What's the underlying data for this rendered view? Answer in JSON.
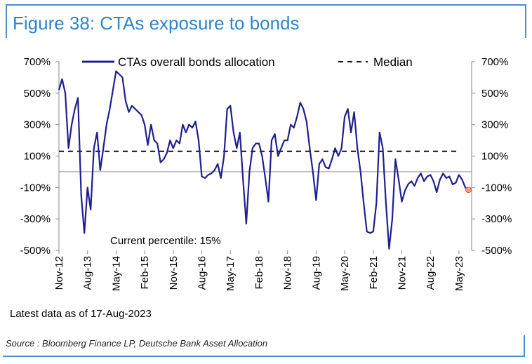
{
  "title": "Figure 38: CTAs exposure to bonds",
  "note": "Latest data as of 17-Aug-2023",
  "source": "Source : Bloomberg Finance LP, Deutsche Bank Asset Allocation",
  "colors": {
    "series": "#1f1f8f",
    "accent": "#2f86c9",
    "last_point": "#f4a07a"
  },
  "chart_data": {
    "type": "line",
    "title": "Figure 38: CTAs exposure to bonds",
    "ylim": [
      -500,
      700
    ],
    "yticks": [
      "700%",
      "500%",
      "300%",
      "100%",
      "-100%",
      "-300%",
      "-500%"
    ],
    "ytick_values": [
      700,
      500,
      300,
      100,
      -100,
      -300,
      -500
    ],
    "x_range": [
      "2012-11",
      "2023-09"
    ],
    "xticks": [
      "Nov-12",
      "Aug-13",
      "May-14",
      "Feb-15",
      "Nov-15",
      "Aug-16",
      "May-17",
      "Feb-18",
      "Nov-18",
      "Aug-19",
      "May-20",
      "Feb-21",
      "Nov-21",
      "Aug-22",
      "May-23"
    ],
    "xtick_dates": [
      "2012-11",
      "2013-08",
      "2014-05",
      "2015-02",
      "2015-11",
      "2016-08",
      "2017-05",
      "2018-02",
      "2018-11",
      "2019-08",
      "2020-05",
      "2021-02",
      "2021-11",
      "2022-08",
      "2023-05"
    ],
    "legend": [
      "CTAs overall bonds allocation",
      "Median"
    ],
    "annotation": "Current percentile: 15%",
    "median": 130,
    "series": [
      {
        "name": "CTAs overall bonds allocation",
        "points": [
          [
            "2012-11",
            520
          ],
          [
            "2012-12",
            590
          ],
          [
            "2013-01",
            500
          ],
          [
            "2013-02",
            150
          ],
          [
            "2013-03",
            300
          ],
          [
            "2013-04",
            400
          ],
          [
            "2013-05",
            470
          ],
          [
            "2013-06",
            -150
          ],
          [
            "2013-07",
            -390
          ],
          [
            "2013-08",
            -100
          ],
          [
            "2013-09",
            -240
          ],
          [
            "2013-10",
            150
          ],
          [
            "2013-11",
            250
          ],
          [
            "2013-12",
            10
          ],
          [
            "2014-01",
            150
          ],
          [
            "2014-02",
            300
          ],
          [
            "2014-03",
            400
          ],
          [
            "2014-04",
            520
          ],
          [
            "2014-05",
            640
          ],
          [
            "2014-06",
            620
          ],
          [
            "2014-07",
            600
          ],
          [
            "2014-08",
            450
          ],
          [
            "2014-09",
            380
          ],
          [
            "2014-10",
            420
          ],
          [
            "2014-11",
            400
          ],
          [
            "2014-12",
            380
          ],
          [
            "2015-01",
            360
          ],
          [
            "2015-02",
            300
          ],
          [
            "2015-03",
            170
          ],
          [
            "2015-04",
            300
          ],
          [
            "2015-05",
            200
          ],
          [
            "2015-06",
            180
          ],
          [
            "2015-07",
            60
          ],
          [
            "2015-08",
            80
          ],
          [
            "2015-09",
            120
          ],
          [
            "2015-10",
            200
          ],
          [
            "2015-11",
            150
          ],
          [
            "2015-12",
            200
          ],
          [
            "2016-01",
            180
          ],
          [
            "2016-02",
            300
          ],
          [
            "2016-03",
            250
          ],
          [
            "2016-04",
            300
          ],
          [
            "2016-05",
            280
          ],
          [
            "2016-06",
            320
          ],
          [
            "2016-07",
            200
          ],
          [
            "2016-08",
            -30
          ],
          [
            "2016-09",
            -40
          ],
          [
            "2016-10",
            -20
          ],
          [
            "2016-11",
            -10
          ],
          [
            "2016-12",
            10
          ],
          [
            "2017-01",
            50
          ],
          [
            "2017-02",
            -40
          ],
          [
            "2017-03",
            100
          ],
          [
            "2017-04",
            400
          ],
          [
            "2017-05",
            420
          ],
          [
            "2017-06",
            250
          ],
          [
            "2017-07",
            150
          ],
          [
            "2017-08",
            250
          ],
          [
            "2017-09",
            -50
          ],
          [
            "2017-10",
            -330
          ],
          [
            "2017-11",
            0
          ],
          [
            "2017-12",
            150
          ],
          [
            "2018-01",
            180
          ],
          [
            "2018-02",
            180
          ],
          [
            "2018-03",
            100
          ],
          [
            "2018-04",
            -40
          ],
          [
            "2018-05",
            -190
          ],
          [
            "2018-06",
            200
          ],
          [
            "2018-07",
            240
          ],
          [
            "2018-08",
            100
          ],
          [
            "2018-09",
            150
          ],
          [
            "2018-10",
            200
          ],
          [
            "2018-11",
            200
          ],
          [
            "2018-12",
            300
          ],
          [
            "2019-01",
            280
          ],
          [
            "2019-02",
            350
          ],
          [
            "2019-03",
            440
          ],
          [
            "2019-04",
            400
          ],
          [
            "2019-05",
            320
          ],
          [
            "2019-06",
            150
          ],
          [
            "2019-07",
            0
          ],
          [
            "2019-08",
            -180
          ],
          [
            "2019-09",
            50
          ],
          [
            "2019-10",
            80
          ],
          [
            "2019-11",
            30
          ],
          [
            "2019-12",
            20
          ],
          [
            "2020-01",
            80
          ],
          [
            "2020-02",
            150
          ],
          [
            "2020-03",
            100
          ],
          [
            "2020-04",
            150
          ],
          [
            "2020-05",
            350
          ],
          [
            "2020-06",
            400
          ],
          [
            "2020-07",
            250
          ],
          [
            "2020-08",
            380
          ],
          [
            "2020-09",
            150
          ],
          [
            "2020-10",
            0
          ],
          [
            "2020-11",
            -200
          ],
          [
            "2020-12",
            -380
          ],
          [
            "2021-01",
            -390
          ],
          [
            "2021-02",
            -380
          ],
          [
            "2021-03",
            -200
          ],
          [
            "2021-04",
            250
          ],
          [
            "2021-05",
            150
          ],
          [
            "2021-06",
            -200
          ],
          [
            "2021-07",
            -490
          ],
          [
            "2021-08",
            -300
          ],
          [
            "2021-09",
            80
          ],
          [
            "2021-10",
            -50
          ],
          [
            "2021-11",
            -190
          ],
          [
            "2021-12",
            -120
          ],
          [
            "2022-01",
            -80
          ],
          [
            "2022-02",
            -60
          ],
          [
            "2022-03",
            -90
          ],
          [
            "2022-04",
            -40
          ],
          [
            "2022-05",
            -10
          ],
          [
            "2022-06",
            -60
          ],
          [
            "2022-07",
            -30
          ],
          [
            "2022-08",
            -20
          ],
          [
            "2022-09",
            -60
          ],
          [
            "2022-10",
            -130
          ],
          [
            "2022-11",
            -50
          ],
          [
            "2022-12",
            -10
          ],
          [
            "2023-01",
            -40
          ],
          [
            "2023-02",
            -30
          ],
          [
            "2023-03",
            -80
          ],
          [
            "2023-04",
            -70
          ],
          [
            "2023-05",
            -20
          ],
          [
            "2023-06",
            -50
          ],
          [
            "2023-07",
            -100
          ],
          [
            "2023-08",
            -115
          ]
        ]
      }
    ]
  }
}
